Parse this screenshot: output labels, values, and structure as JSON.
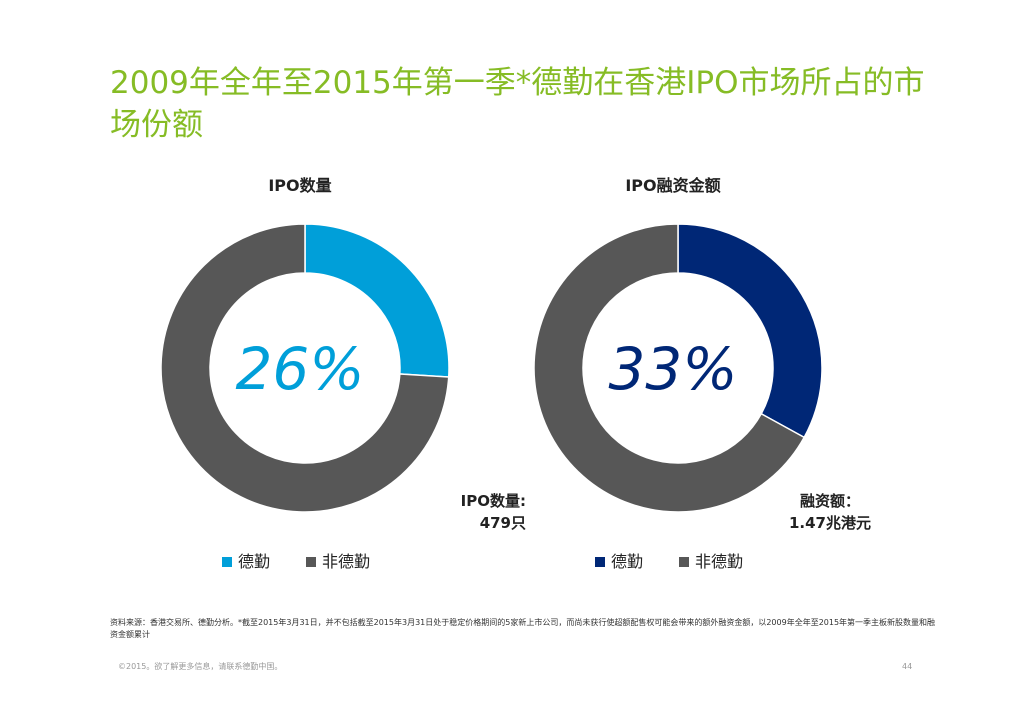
{
  "title": "2009年全年至2015年第一季*德勤在香港IPO市场所占的市场份额",
  "colors": {
    "title": "#86bc25",
    "deloitte_count": "#009fd9",
    "deloitte_amount": "#002776",
    "others": "#575757"
  },
  "chart_data": [
    {
      "type": "pie",
      "title": "IPO数量",
      "center_label": "26%",
      "categories": [
        "德勤",
        "非德勤"
      ],
      "values": [
        26,
        74
      ],
      "colors": [
        "#009fd9",
        "#575757"
      ],
      "note_line1": "IPO数量:",
      "note_line2": "479只",
      "legend": [
        "德勤",
        "非德勤"
      ],
      "legend_placement": "bottom"
    },
    {
      "type": "pie",
      "title": "IPO融资金额",
      "center_label": "33%",
      "categories": [
        "德勤",
        "非德勤"
      ],
      "values": [
        33,
        67
      ],
      "colors": [
        "#002776",
        "#575757"
      ],
      "note_line1": "融资额：",
      "note_line2": "1.47兆港元",
      "legend": [
        "德勤",
        "非德勤"
      ],
      "legend_placement": "bottom"
    }
  ],
  "footnote": "资料来源：香港交易所、德勤分析。*截至2015年3月31日，并不包括截至2015年3月31日处于稳定价格期间的5家新上市公司，而尚未获行使超额配售权可能会带来的额外融资金额，以2009年全年至2015年第一季主板新股数量和融资金额累计",
  "copyright": "©2015。欲了解更多信息，请联系德勤中国。",
  "page_number": "44"
}
